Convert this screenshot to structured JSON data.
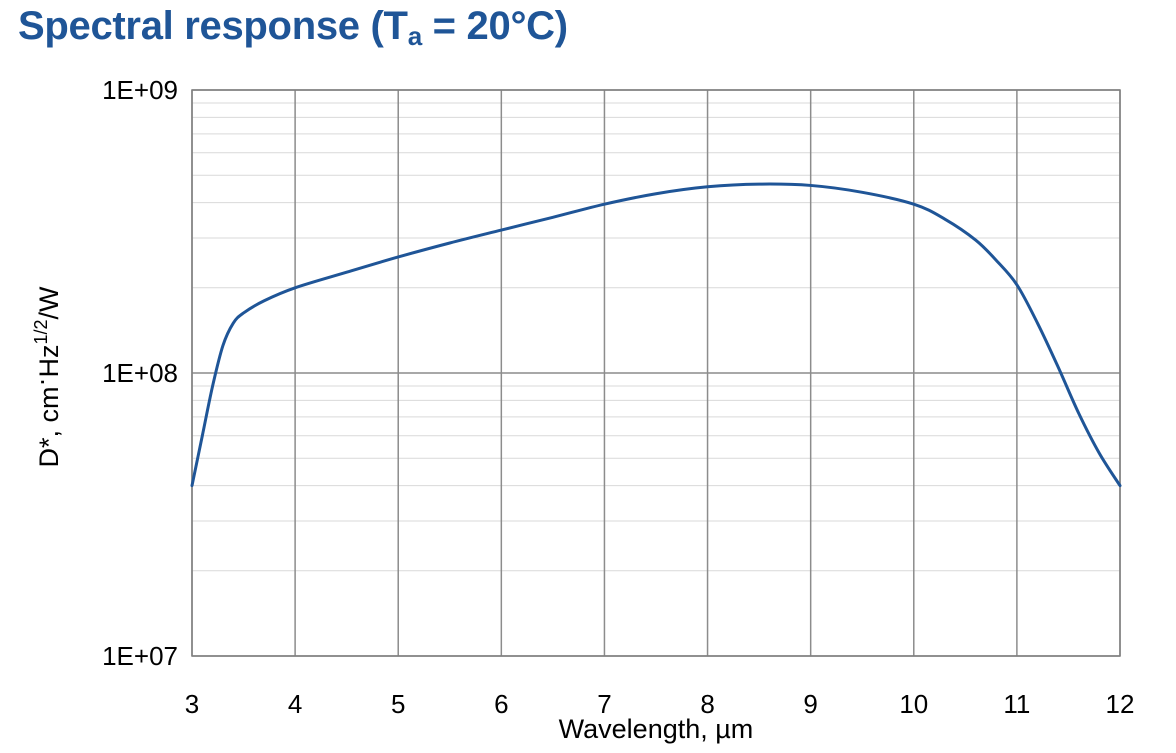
{
  "title": {
    "main": "Spectral response (T",
    "subscript": "a",
    "tail": " = 20°C)"
  },
  "colors": {
    "title": "#1f5597",
    "line": "#1f5597",
    "major_grid": "#8c8c8c",
    "minor_grid": "#d9d9d9"
  },
  "chart_data": {
    "type": "line",
    "title": "Spectral response (Ta = 20°C)",
    "xlabel": "Wavelength, µm",
    "ylabel_parts": {
      "base": "D*, cm",
      "dot": "·",
      "hz": "Hz",
      "exp": "1/2",
      "unit": "/W"
    },
    "xlim": [
      3,
      12
    ],
    "ylim": [
      10000000,
      1000000000
    ],
    "yscale": "log",
    "grid": true,
    "x_ticks": [
      "3",
      "4",
      "5",
      "6",
      "7",
      "8",
      "9",
      "10",
      "11",
      "12"
    ],
    "y_ticks": [
      {
        "value": 10000000,
        "label": "1E+07"
      },
      {
        "value": 100000000,
        "label": "1E+08"
      },
      {
        "value": 1000000000,
        "label": "1E+09"
      }
    ],
    "series": [
      {
        "name": "D*",
        "x": [
          3.0,
          3.1,
          3.2,
          3.3,
          3.4,
          3.5,
          3.7,
          4.0,
          4.5,
          5.0,
          5.5,
          6.0,
          6.5,
          7.0,
          7.5,
          8.0,
          8.5,
          9.0,
          9.5,
          10.0,
          10.3,
          10.6,
          10.8,
          11.0,
          11.2,
          11.4,
          11.6,
          11.8,
          12.0
        ],
        "y": [
          40000000,
          60000000,
          90000000,
          125000000,
          150000000,
          163000000,
          180000000,
          200000000,
          227000000,
          257000000,
          288000000,
          320000000,
          355000000,
          395000000,
          430000000,
          455000000,
          465000000,
          460000000,
          435000000,
          395000000,
          350000000,
          295000000,
          250000000,
          205000000,
          150000000,
          105000000,
          72000000,
          52000000,
          40000000
        ]
      }
    ]
  }
}
